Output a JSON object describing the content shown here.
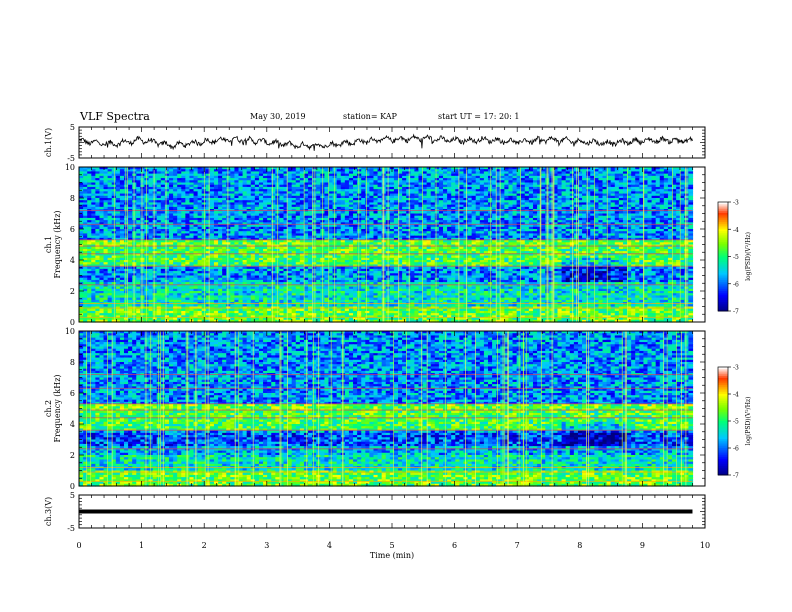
{
  "header": {
    "title": "VLF  Spectra",
    "date": "May 30, 2019",
    "station": "station= KAP",
    "start": "start  UT  =    17: 20: 1"
  },
  "colors": {
    "trace": "#000000",
    "colormap": [
      "#000080",
      "#0000ff",
      "#00ffff",
      "#00ff00",
      "#ffff00",
      "#ff0000",
      "#ffffff"
    ]
  },
  "chart_data": [
    {
      "type": "line",
      "ylabel": "ch.1(V)",
      "ylim": [
        -5,
        5
      ],
      "yticks": [
        "5",
        "-5"
      ],
      "xlim": [
        0,
        10
      ],
      "description_of_trace": "noisy waveform",
      "x": [
        0,
        0.5,
        1,
        1.5,
        2,
        2.5,
        3,
        3.5,
        4,
        4.5,
        5,
        5.5,
        6,
        6.5,
        7,
        7.5,
        8,
        8.5,
        9,
        9.5,
        9.8
      ],
      "y": [
        0.5,
        -0.5,
        0.8,
        -1.0,
        0.3,
        1.2,
        0.2,
        -1.0,
        -0.8,
        0.4,
        1.0,
        1.4,
        0.6,
        0.9,
        0.2,
        1.0,
        0.3,
        -0.2,
        0.6,
        0.8,
        0.5
      ]
    },
    {
      "type": "heatmap",
      "ylabel_line1": "ch.1",
      "ylabel_line2": "Frequency  (kHz)",
      "ylim": [
        0,
        10
      ],
      "yticks": [
        "0",
        "2",
        "4",
        "6",
        "8",
        "10"
      ],
      "xlim": [
        0,
        10
      ],
      "colorbar": {
        "label": "log(PSD)(V²/Hz)",
        "ticks": [
          "-3",
          "-4",
          "-5",
          "-6",
          "-7"
        ],
        "range": [
          -7,
          -3
        ]
      }
    },
    {
      "type": "heatmap",
      "ylabel_line1": "ch.2",
      "ylabel_line2": "Frequency  (kHz)",
      "ylim": [
        0,
        10
      ],
      "yticks": [
        "0",
        "2",
        "4",
        "6",
        "8",
        "10"
      ],
      "xlim": [
        0,
        10
      ],
      "colorbar": {
        "label": "log(PSD)(V²/Hz)",
        "ticks": [
          "-3",
          "-4",
          "-5",
          "-6",
          "-7"
        ],
        "range": [
          -7,
          -3
        ]
      }
    },
    {
      "type": "line",
      "ylabel": "ch.3(V)",
      "ylim": [
        -5,
        5
      ],
      "yticks": [
        "5",
        "-5"
      ],
      "xlim": [
        0,
        10
      ],
      "x": [
        0,
        9.8
      ],
      "y": [
        0,
        0
      ]
    }
  ],
  "xaxis": {
    "label": "Time  (min)",
    "ticks": [
      "0",
      "1",
      "2",
      "3",
      "4",
      "5",
      "6",
      "7",
      "8",
      "9",
      "10"
    ]
  }
}
